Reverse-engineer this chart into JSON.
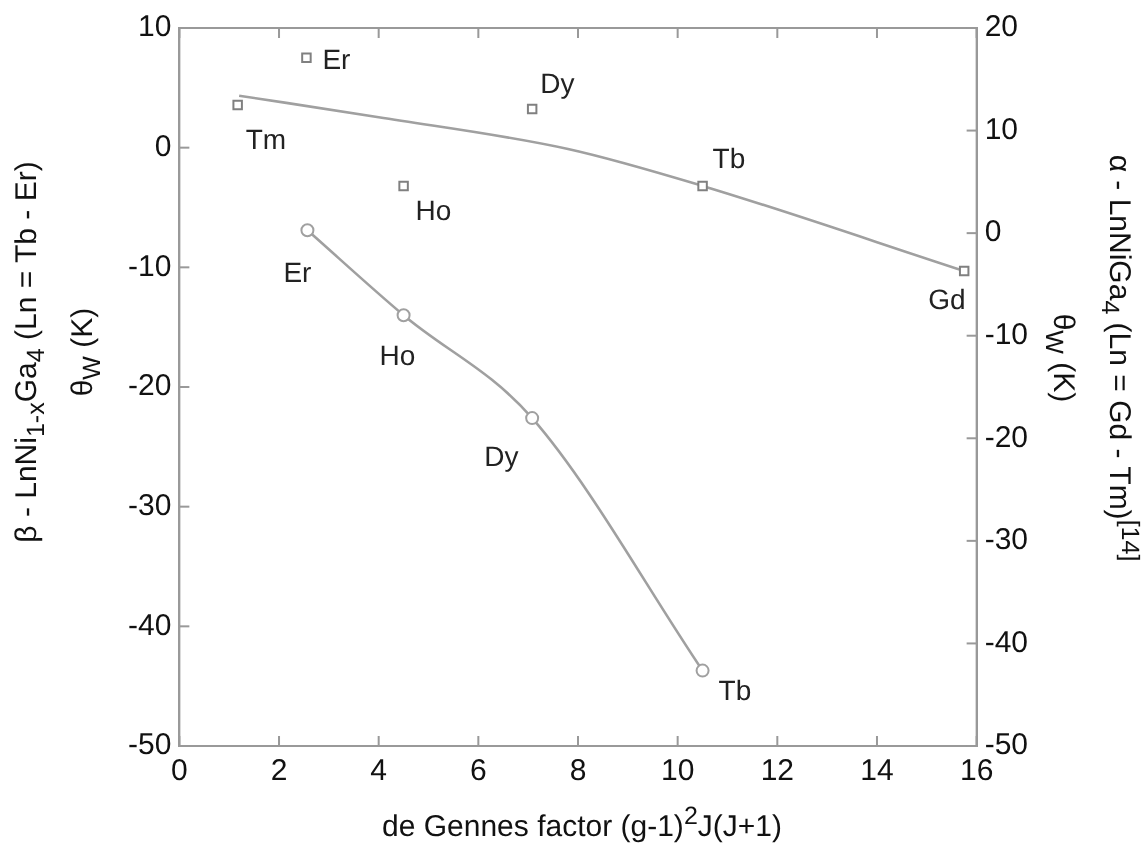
{
  "chart_data": {
    "type": "scatter",
    "xlabel": "de Gennes factor (g-1)$^{2}$J(J+1)",
    "ylabel": "β - LnNi$_{1-x}$Ga$_{4}$ (Ln = Tb - Er)\nθ$_{W}$ (K)",
    "y2label": "α - LnNiGa$_{4}$ (Ln = Gd - Tm)$^{[14]}$\nθ$_{W}$ (K)",
    "xlim": [
      0,
      16
    ],
    "xticks": [
      0,
      2,
      4,
      6,
      8,
      10,
      12,
      14,
      16
    ],
    "ylim": [
      -50,
      10
    ],
    "yticks": [
      -50,
      -40,
      -30,
      -20,
      -10,
      0,
      10
    ],
    "y2lim": [
      -50,
      20
    ],
    "y2ticks": [
      -50,
      -40,
      -30,
      -20,
      -10,
      0,
      10,
      20
    ],
    "grid": false,
    "legend": false,
    "series": [
      {
        "axis": "y2",
        "marker": "square",
        "color": "#808080",
        "x": [
          1.17,
          2.55,
          4.5,
          7.08,
          10.5,
          15.75
        ],
        "values": [
          12.5,
          17.1,
          4.6,
          12.1,
          4.6,
          -3.7
        ],
        "value_labels": [
          "Tm",
          "Er",
          "Ho",
          "Dy",
          "Tb",
          "Gd"
        ]
      },
      {
        "type": "line",
        "axis": "y2",
        "marker": "none",
        "color": "#a0a0a0",
        "x": [
          1.2,
          4,
          7.8,
          10.5,
          15.75
        ],
        "values": [
          13.4,
          11.3,
          8.2,
          4.6,
          -3.7
        ]
      },
      {
        "type": "line",
        "axis": "y",
        "marker": "circle",
        "color": "#a0a0a0",
        "x": [
          2.57,
          4.5,
          7.08,
          10.5
        ],
        "values": [
          -6.9,
          -14.0,
          -22.6,
          -43.7
        ],
        "value_labels": [
          "Er",
          "Ho",
          "Dy",
          "Tb"
        ]
      }
    ]
  }
}
